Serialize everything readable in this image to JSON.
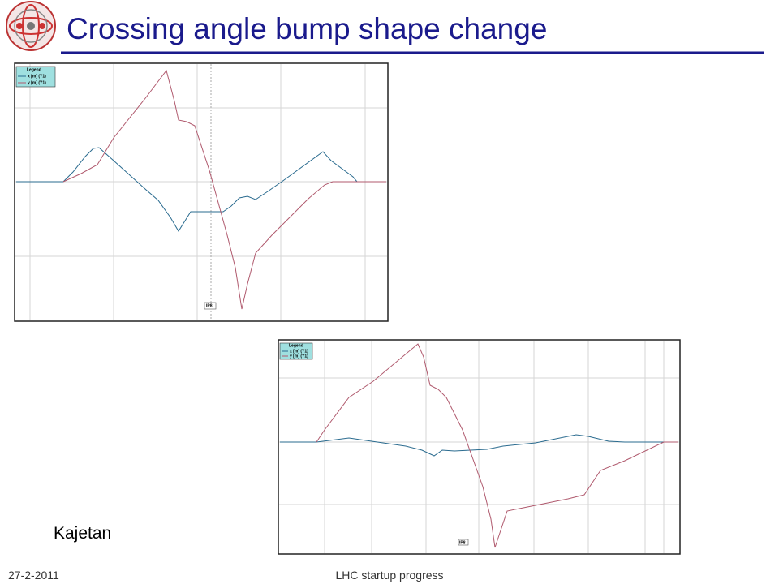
{
  "header": {
    "title": "Crossing angle bump shape change"
  },
  "plots": [
    {
      "legend_title": "Legend",
      "legend": [
        "x [m] (Y1)",
        "y [m] (Y1)"
      ],
      "marker": "IP8"
    },
    {
      "legend_title": "Legend",
      "legend": [
        "x [m] (Y1)",
        "y [m] (Y1)"
      ],
      "marker": "IP8"
    }
  ],
  "author": "Kajetan",
  "footer": {
    "date": "27-2-2011",
    "center": "LHC startup progress"
  }
}
